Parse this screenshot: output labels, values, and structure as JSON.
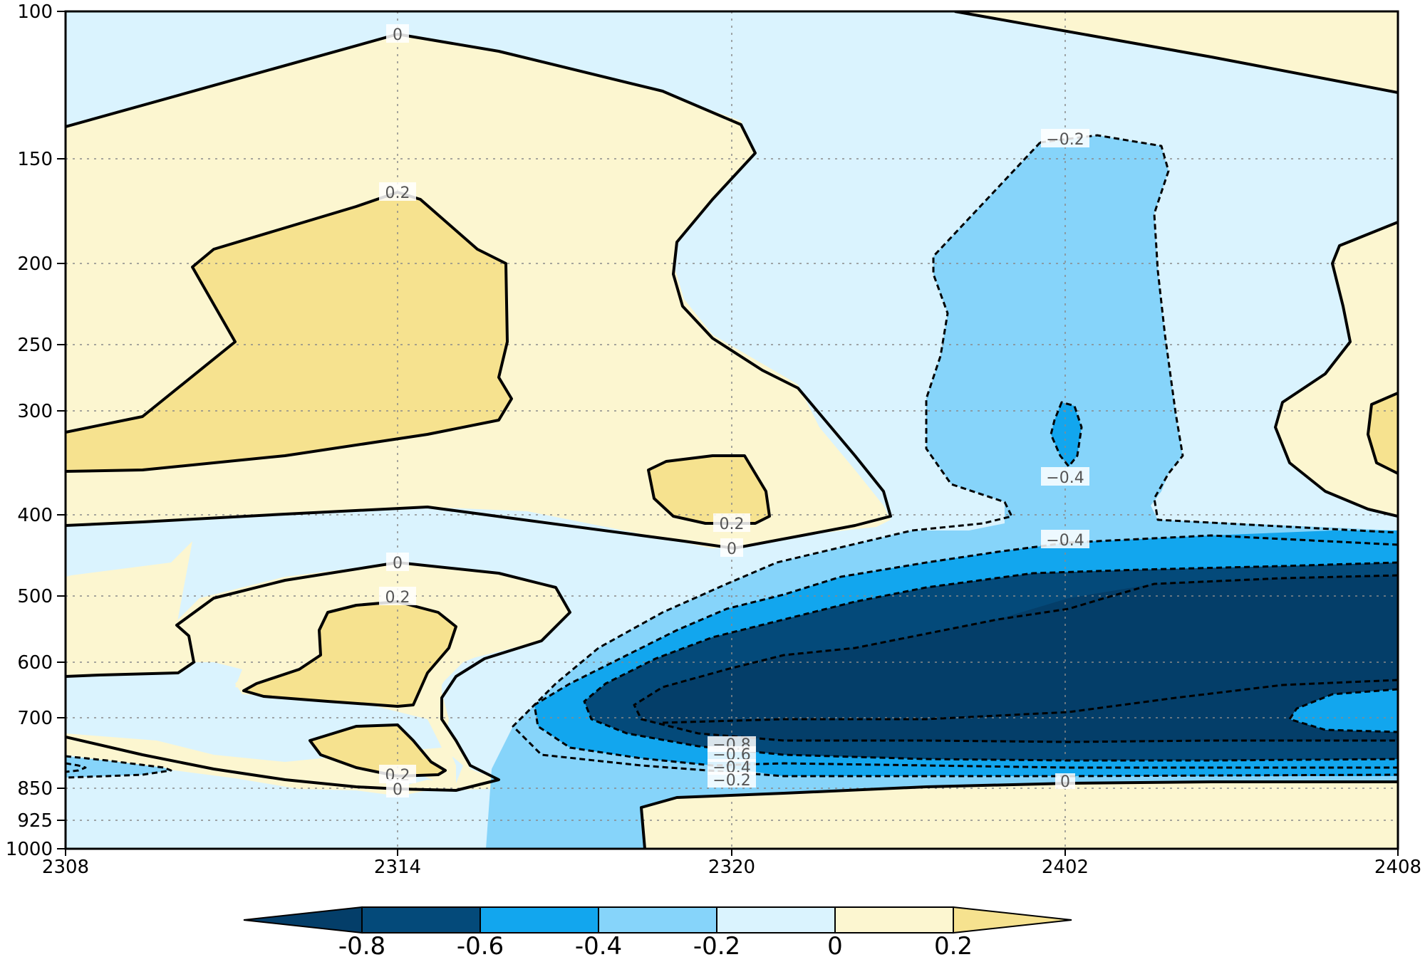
{
  "chart_data": {
    "type": "contour",
    "title": "",
    "xlabel": "",
    "ylabel": "",
    "x_ticks": [
      "2308",
      "2314",
      "2320",
      "2402",
      "2408"
    ],
    "y_ticks": [
      "100",
      "150",
      "200",
      "250",
      "300",
      "400",
      "500",
      "600",
      "700",
      "850",
      "925",
      "1000"
    ],
    "y_scale": "log (pressure, inverted)",
    "ylim": [
      1000,
      100
    ],
    "grid": true,
    "colorbar": {
      "orientation": "horizontal",
      "placement": "bottom",
      "levels": [
        "-0.8",
        "-0.6",
        "-0.4",
        "-0.2",
        "0",
        "0.2"
      ],
      "colors": [
        "#043e69",
        "#044a7a",
        "#12a6ee",
        "#86d4fa",
        "#daf3fe",
        "#fcf6d0",
        "#f6e28f"
      ],
      "extend": "both"
    },
    "contour_labels": [
      {
        "text": "0"
      },
      {
        "text": "0.2"
      },
      {
        "text": "0.2"
      },
      {
        "text": "0"
      },
      {
        "text": "0"
      },
      {
        "text": "0.2"
      },
      {
        "text": "0.2"
      },
      {
        "text": "0"
      },
      {
        "text": "−0.2"
      },
      {
        "text": "−0.4"
      },
      {
        "text": "−0.4"
      },
      {
        "text": "−0.8"
      },
      {
        "text": "−0.6"
      },
      {
        "text": "−0.4"
      },
      {
        "text": "−0.2"
      },
      {
        "text": "0"
      }
    ],
    "features": [
      {
        "name": "positive-upper-left",
        "value_range": [
          0,
          0.2
        ]
      },
      {
        "name": "positive-core-upper-left",
        "value_range": [
          0.2,
          0.4
        ]
      },
      {
        "name": "positive-mid-left",
        "value_range": [
          0,
          0.2
        ]
      },
      {
        "name": "negative-column-right",
        "value_range": [
          -0.4,
          -0.2
        ]
      },
      {
        "name": "negative-core-lower-right",
        "value_range": [
          -1.0,
          -0.6
        ]
      },
      {
        "name": "positive-near-surface-right",
        "value_range": [
          0,
          0.2
        ]
      }
    ]
  }
}
